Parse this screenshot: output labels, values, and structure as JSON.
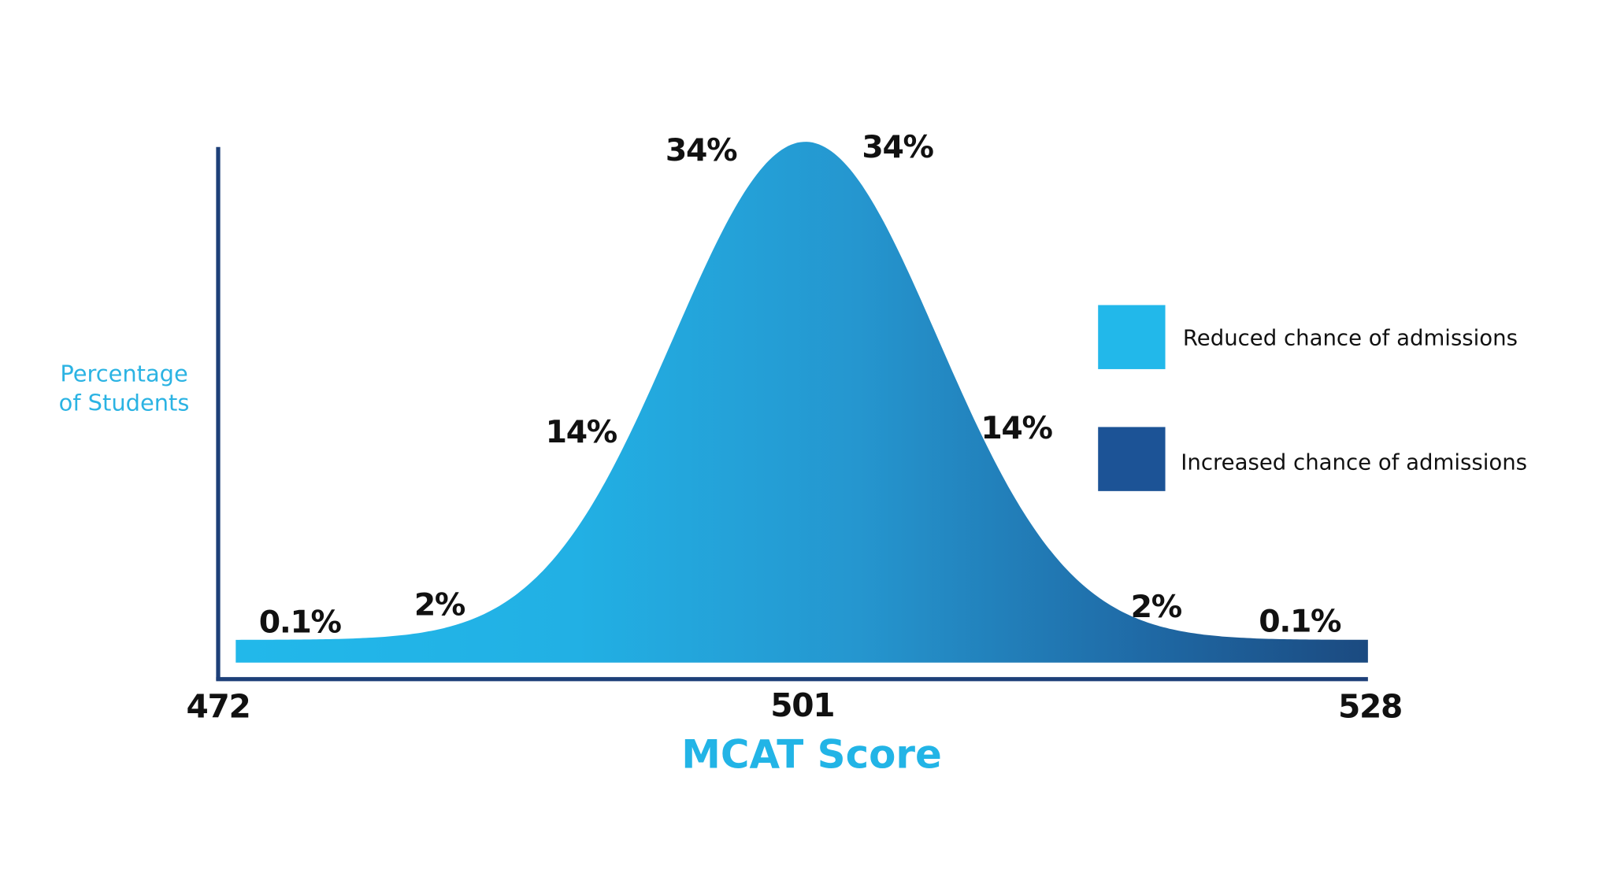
{
  "chart_data": {
    "type": "area",
    "title": "",
    "xlabel": "MCAT Score",
    "ylabel": "Percentage of Students",
    "xlim": [
      472,
      528
    ],
    "x_ticks": [
      "472",
      "501",
      "528"
    ],
    "distribution": {
      "shape": "normal",
      "mean": 501,
      "sd": 6.5
    },
    "segment_labels": [
      "0.1%",
      "2%",
      "14%",
      "34%",
      "34%",
      "14%",
      "2%",
      "0.1%"
    ],
    "legend": [
      {
        "label": "Reduced chance of admissions",
        "color": "#22b8ea"
      },
      {
        "label": "Increased chance of admissions",
        "color": "#1c5396"
      }
    ],
    "legend_position": "right",
    "grid": false,
    "gradient_colors": [
      "#22b8ea",
      "#2596cf",
      "#1b4a80"
    ],
    "axis_color": "#1d3f78"
  }
}
